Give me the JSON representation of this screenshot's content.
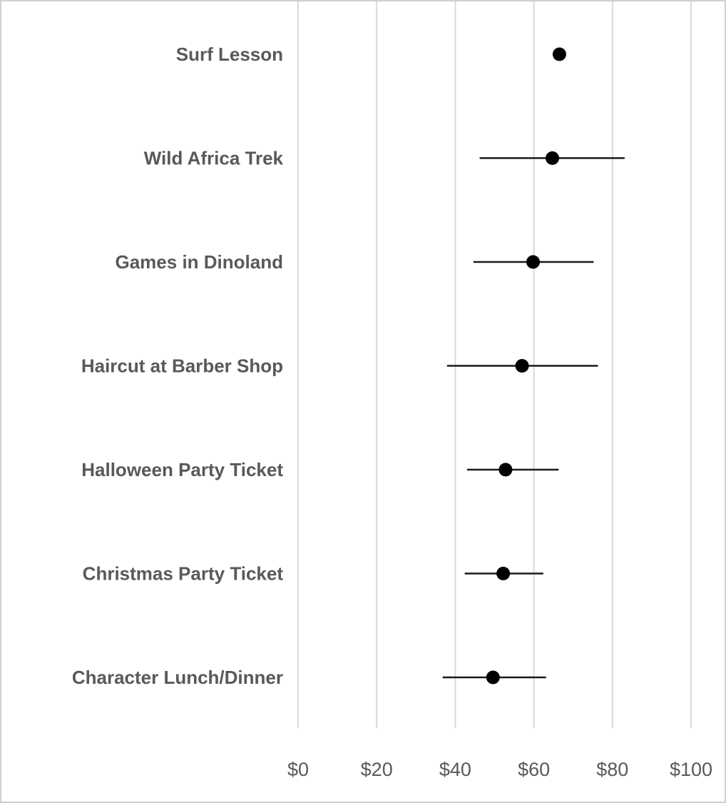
{
  "chart_data": {
    "type": "scatter",
    "orientation": "horizontal-dot-plot-with-error-bars",
    "title": "",
    "xlabel": "",
    "ylabel": "",
    "xlim": [
      0,
      100
    ],
    "x_ticks": [
      0,
      20,
      40,
      60,
      80,
      100
    ],
    "x_tick_labels": [
      "$0",
      "$20",
      "$40",
      "$60",
      "$80",
      "$100"
    ],
    "grid": "vertical",
    "legend": "none",
    "categories": [
      "Surf Lesson",
      "Wild Africa Trek",
      "Games in Dinoland",
      "Haircut at Barber Shop",
      "Halloween Party Ticket",
      "Christmas Party Ticket",
      "Character Lunch/Dinner"
    ],
    "series": [
      {
        "values": [
          66.5,
          64.7,
          59.8,
          57.0,
          52.8,
          52.2,
          49.6
        ],
        "error_low": [
          66.5,
          46.2,
          44.6,
          37.9,
          43.0,
          42.4,
          36.8
        ],
        "error_high": [
          66.5,
          83.1,
          75.2,
          76.3,
          66.3,
          62.4,
          63.1
        ]
      }
    ],
    "colors": {
      "marker": "#000000",
      "error_bar": "#1a1a1a",
      "grid": "#d9d9d9",
      "text": "#595959"
    }
  }
}
